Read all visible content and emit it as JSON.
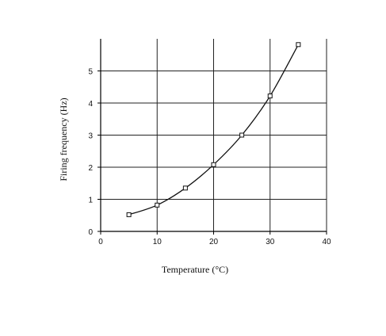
{
  "chart_data": {
    "type": "line",
    "title": "",
    "xlabel": "Temperature (°C)",
    "ylabel": "Firing frequency (Hz)",
    "xlim": [
      0,
      40
    ],
    "ylim": [
      0,
      6
    ],
    "x_ticks": [
      "0",
      "10",
      "20",
      "30",
      "40"
    ],
    "y_ticks": [
      "0",
      "1",
      "2",
      "3",
      "4",
      "5"
    ],
    "grid": true,
    "legend": "none",
    "series": [
      {
        "marker": "open-square",
        "color": "#111111",
        "points": [
          {
            "x": 5,
            "y": 0.52
          },
          {
            "x": 10,
            "y": 0.82
          },
          {
            "x": 15,
            "y": 1.35
          },
          {
            "x": 20,
            "y": 2.08
          },
          {
            "x": 25,
            "y": 3.0
          },
          {
            "x": 30,
            "y": 4.22
          },
          {
            "x": 35,
            "y": 5.82
          }
        ]
      }
    ]
  }
}
